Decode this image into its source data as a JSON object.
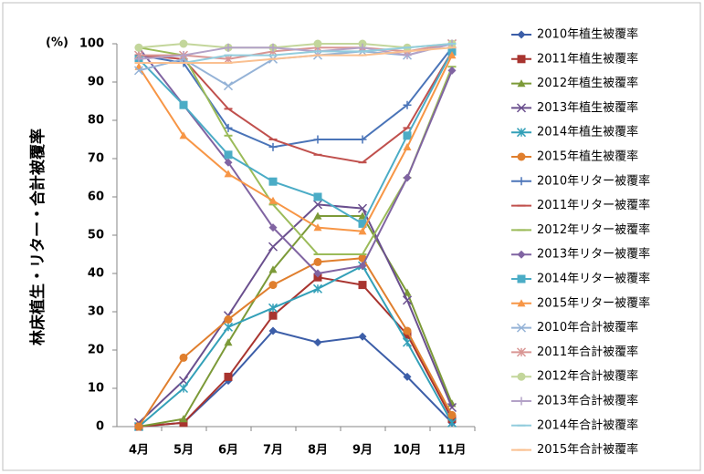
{
  "chart_data": {
    "type": "line",
    "y_unit_label": "(%)",
    "y_label": "林床植生・リター・合計被覆率",
    "categories": [
      "4月",
      "5月",
      "6月",
      "7月",
      "8月",
      "9月",
      "10月",
      "11月"
    ],
    "ylim": [
      0,
      100
    ],
    "yticks": [
      0,
      10,
      20,
      30,
      40,
      50,
      60,
      70,
      80,
      90,
      100
    ],
    "grid": false,
    "legend": "right",
    "series": [
      {
        "name": "2010年植生被覆率",
        "color": "#3c5ea8",
        "marker": "diamond",
        "values": [
          0,
          1,
          12,
          25,
          22,
          23.5,
          13,
          1
        ]
      },
      {
        "name": "2011年植生被覆率",
        "color": "#a8342f",
        "marker": "square",
        "values": [
          0,
          1,
          13,
          29,
          39,
          37,
          24,
          2
        ]
      },
      {
        "name": "2012年植生被覆率",
        "color": "#7c9a38",
        "marker": "triangle",
        "values": [
          0,
          2,
          22,
          41,
          55,
          55,
          35,
          6
        ]
      },
      {
        "name": "2013年植生被覆率",
        "color": "#6a4f8e",
        "marker": "x",
        "values": [
          1,
          12,
          29,
          47,
          58,
          57,
          33,
          5
        ]
      },
      {
        "name": "2014年植生被覆率",
        "color": "#33a0b8",
        "marker": "asterisk",
        "values": [
          0,
          10,
          26,
          31,
          36,
          42,
          22,
          1
        ]
      },
      {
        "name": "2015年植生被覆率",
        "color": "#e07f2e",
        "marker": "circle",
        "values": [
          0,
          18,
          28,
          37,
          43,
          44,
          25,
          3
        ]
      },
      {
        "name": "2010年リター被覆率",
        "color": "#4a74b8",
        "marker": "plus",
        "values": [
          97,
          95,
          78,
          73,
          75,
          75,
          84,
          99
        ]
      },
      {
        "name": "2011年リター被覆率",
        "color": "#c0504d",
        "marker": "dash",
        "values": [
          97,
          96,
          83,
          75,
          71,
          69,
          78,
          98
        ]
      },
      {
        "name": "2012年リター被覆率",
        "color": "#9bbb59",
        "marker": "dash",
        "values": [
          99,
          97,
          76,
          58,
          45,
          45,
          65,
          94
        ]
      },
      {
        "name": "2013年リター被覆率",
        "color": "#8064a2",
        "marker": "diamond",
        "values": [
          99,
          84,
          69,
          52,
          40,
          42,
          65,
          93
        ]
      },
      {
        "name": "2014年リター被覆率",
        "color": "#4bacc6",
        "marker": "square",
        "values": [
          96,
          84,
          71,
          64,
          60,
          53,
          76,
          98
        ]
      },
      {
        "name": "2015年リター被覆率",
        "color": "#f79646",
        "marker": "triangle",
        "values": [
          94,
          76,
          66,
          59,
          52,
          51,
          73,
          97
        ]
      },
      {
        "name": "2010年合計被覆率",
        "color": "#95b3d7",
        "marker": "x",
        "values": [
          93,
          96,
          89,
          96,
          97,
          98,
          97,
          100
        ]
      },
      {
        "name": "2011年合計被覆率",
        "color": "#d99694",
        "marker": "asterisk",
        "values": [
          97,
          97,
          96,
          98,
          99,
          99,
          98,
          100
        ]
      },
      {
        "name": "2012年合計被覆率",
        "color": "#c3d69b",
        "marker": "circle",
        "values": [
          99,
          100,
          99,
          99,
          100,
          100,
          99,
          100
        ]
      },
      {
        "name": "2013年合計被覆率",
        "color": "#b3a2c7",
        "marker": "plus",
        "values": [
          96,
          97,
          99,
          99,
          98,
          99,
          97,
          100
        ]
      },
      {
        "name": "2014年合計被覆率",
        "color": "#93cddd",
        "marker": "dash",
        "values": [
          95,
          95,
          97,
          97,
          98,
          98,
          99,
          100
        ]
      },
      {
        "name": "2015年合計被覆率",
        "color": "#fac090",
        "marker": "dash",
        "values": [
          95,
          95,
          95,
          96,
          97,
          97,
          98,
          99
        ]
      }
    ]
  }
}
